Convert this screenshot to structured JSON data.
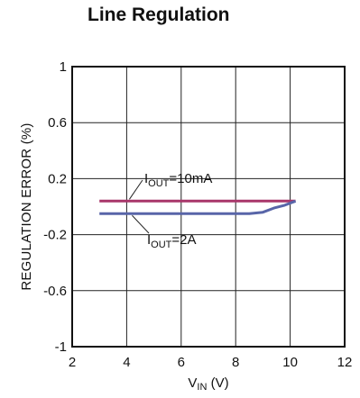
{
  "chart_data": {
    "type": "line",
    "title": "Line Regulation",
    "xlabel": {
      "main": "V",
      "sub": "IN",
      "unit": " (V)"
    },
    "ylabel": "REGULATION ERROR (%)",
    "xlim": [
      2,
      12
    ],
    "ylim": [
      -1,
      1
    ],
    "xticks": [
      2,
      4,
      6,
      8,
      10,
      12
    ],
    "yticks": [
      -1,
      -0.6,
      -0.2,
      0.2,
      0.6,
      1
    ],
    "ytick_labels": [
      "-1",
      "-0.6",
      "-0.2",
      "0.2",
      "0.6",
      "1"
    ],
    "grid": true,
    "series": [
      {
        "color": "#a8366a",
        "x": [
          3,
          10.2
        ],
        "y": [
          0.04,
          0.04
        ]
      },
      {
        "color": "#5865a8",
        "x": [
          3,
          8.5,
          9.0,
          9.4,
          9.8,
          10.2
        ],
        "y": [
          -0.05,
          -0.05,
          -0.04,
          -0.01,
          0.01,
          0.04
        ]
      }
    ],
    "annotations": [
      {
        "main": "I",
        "sub": "OUT",
        "rest": "=10mA",
        "target": [
          4.1,
          0.04
        ]
      },
      {
        "main": "I",
        "sub": "OUT",
        "rest": "=2A",
        "target": [
          4.2,
          -0.05
        ]
      }
    ]
  }
}
